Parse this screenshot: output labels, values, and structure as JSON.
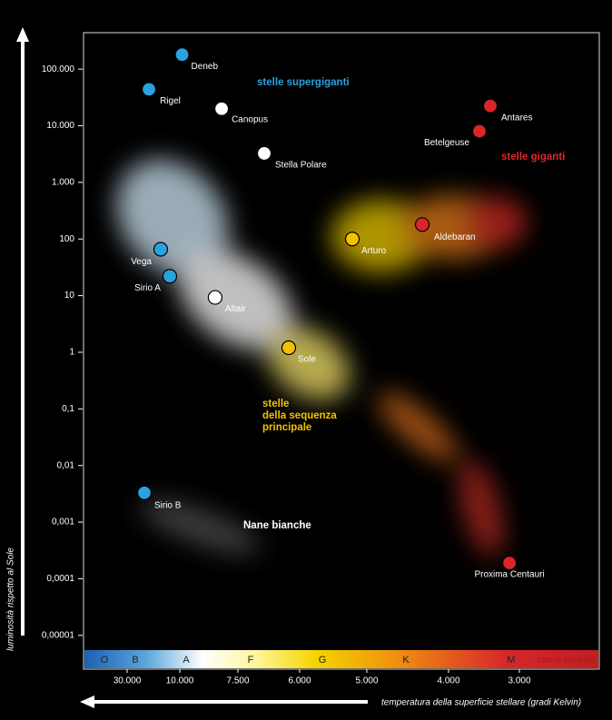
{
  "chart_data": {
    "type": "scatter",
    "x_label": "temperatura della superficie stellare (gradi Kelvin)",
    "y_label": "luminosità rispetto al Sole",
    "log_y": true,
    "xlim": [
      45000,
      2600
    ],
    "xticks": [
      {
        "value": 30000,
        "label": "30.000"
      },
      {
        "value": 10000,
        "label": "10.000"
      },
      {
        "value": 7500,
        "label": "7.500"
      },
      {
        "value": 6000,
        "label": "6.000"
      },
      {
        "value": 5000,
        "label": "5.000"
      },
      {
        "value": 4000,
        "label": "4.000"
      },
      {
        "value": 3000,
        "label": "3.000"
      }
    ],
    "ylim": [
      5.5e-06,
      440000
    ],
    "yticks": [
      {
        "value": 100000,
        "label": "100.000"
      },
      {
        "value": 10000,
        "label": "10.000"
      },
      {
        "value": 1000,
        "label": "1.000"
      },
      100,
      10,
      1,
      {
        "value": 0.1,
        "label": "0,1"
      },
      {
        "value": 0.01,
        "label": "0,01"
      },
      {
        "value": 0.001,
        "label": "0,001"
      },
      {
        "value": 0.0001,
        "label": "0,0001"
      },
      {
        "value": 1e-05,
        "label": "0,00001"
      }
    ],
    "stars": {
      "names": [
        "Deneb",
        "Rigel",
        "Canopus",
        "Stella Polare",
        "Vega",
        "Sirio A",
        "Altair",
        "Sole",
        "Arturo",
        "Aldebaran",
        "Betelgeuse",
        "Antares",
        "Sirio B",
        "Proxima Centauri"
      ],
      "x": [
        9900,
        21700,
        8200,
        6860,
        17240,
        13800,
        8480,
        6265,
        5216,
        4322,
        3564,
        3410,
        23450,
        3140
      ],
      "values": [
        180000,
        44000,
        20000,
        3250,
        66,
        22,
        9.3,
        1.2,
        100,
        180,
        8000,
        22400,
        0.0033,
        0.00019
      ],
      "colors": [
        "#29a3e0",
        "#29a3e0",
        "#ffffff",
        "#ffffff",
        "#29a3e0",
        "#29a3e0",
        "#ffffff",
        "#f2c200",
        "#f2c200",
        "#d8262b",
        "#d8262b",
        "#d8262b",
        "#29a3e0",
        "#d8262b"
      ]
    },
    "regions": [
      {
        "lines": [
          "stelle supergiganti"
        ],
        "color": "#29a3e0"
      },
      {
        "lines": [
          "stelle giganti"
        ],
        "color": "#e0262b"
      },
      {
        "lines": [
          "stelle",
          "della sequenza",
          "principale"
        ],
        "color": "#f2c200"
      },
      {
        "lines": [
          "Nane bianche"
        ],
        "color": "#ffffff"
      }
    ],
    "spectral_classes": [
      "O",
      "B",
      "A",
      "F",
      "G",
      "K",
      "M"
    ],
    "spectral_label": "classe spettrale"
  }
}
